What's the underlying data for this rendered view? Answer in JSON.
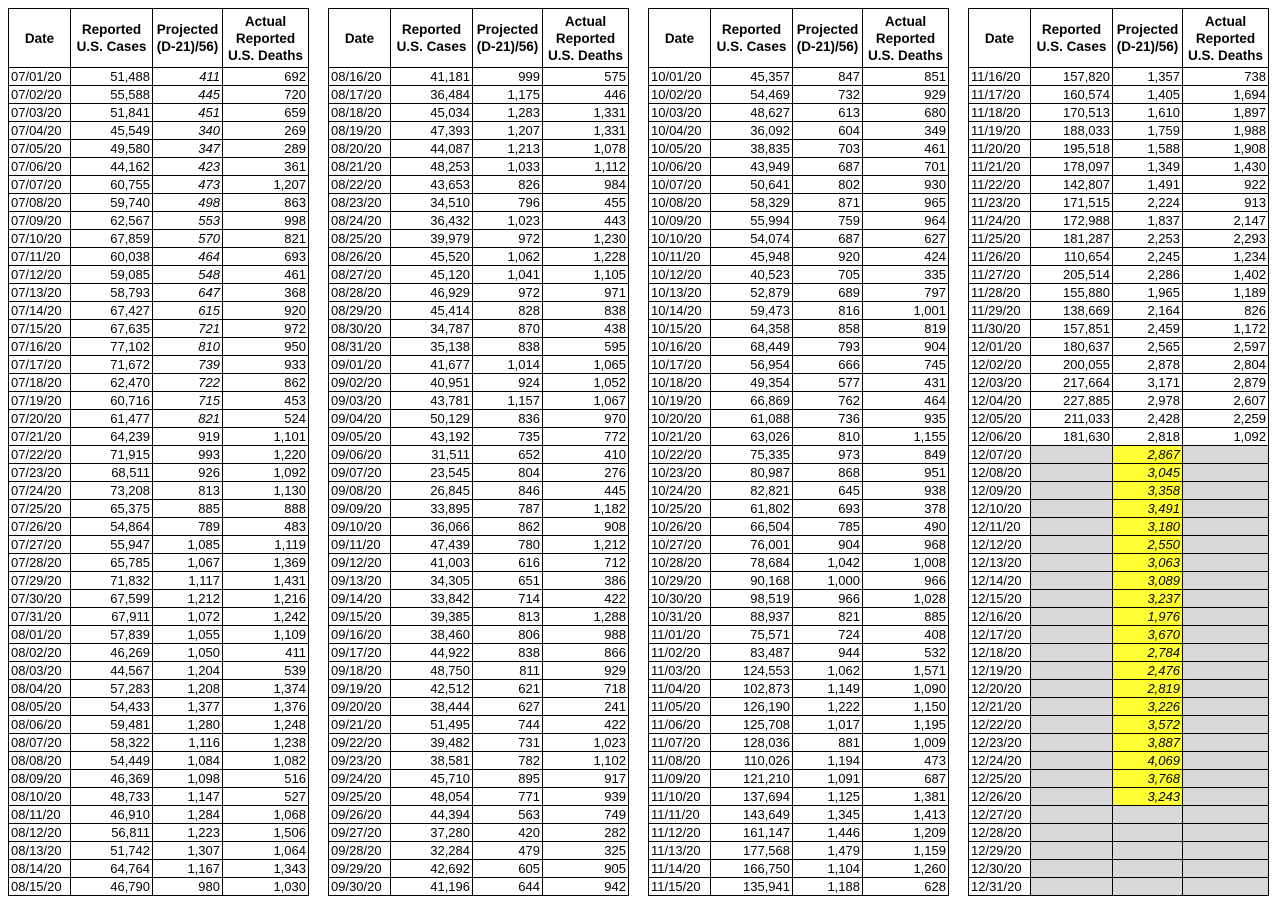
{
  "panels": [
    {
      "headers": [
        "Date",
        "Reported\nU.S. Cases",
        "Projected\n(D-21)/56)",
        "Actual\nReported\nU.S. Deaths"
      ],
      "rows": [
        [
          "07/01/20",
          "51,488",
          "411",
          "692"
        ],
        [
          "07/02/20",
          "55,588",
          "445",
          "720"
        ],
        [
          "07/03/20",
          "51,841",
          "451",
          "659"
        ],
        [
          "07/04/20",
          "45,549",
          "340",
          "269"
        ],
        [
          "07/05/20",
          "49,580",
          "347",
          "289"
        ],
        [
          "07/06/20",
          "44,162",
          "423",
          "361"
        ],
        [
          "07/07/20",
          "60,755",
          "473",
          "1,207"
        ],
        [
          "07/08/20",
          "59,740",
          "498",
          "863"
        ],
        [
          "07/09/20",
          "62,567",
          "553",
          "998"
        ],
        [
          "07/10/20",
          "67,859",
          "570",
          "821"
        ],
        [
          "07/11/20",
          "60,038",
          "464",
          "693"
        ],
        [
          "07/12/20",
          "59,085",
          "548",
          "461"
        ],
        [
          "07/13/20",
          "58,793",
          "647",
          "368"
        ],
        [
          "07/14/20",
          "67,427",
          "615",
          "920"
        ],
        [
          "07/15/20",
          "67,635",
          "721",
          "972"
        ],
        [
          "07/16/20",
          "77,102",
          "810",
          "950"
        ],
        [
          "07/17/20",
          "71,672",
          "739",
          "933"
        ],
        [
          "07/18/20",
          "62,470",
          "722",
          "862"
        ],
        [
          "07/19/20",
          "60,716",
          "715",
          "453"
        ],
        [
          "07/20/20",
          "61,477",
          "821",
          "524"
        ],
        [
          "07/21/20",
          "64,239",
          "919",
          "1,101"
        ],
        [
          "07/22/20",
          "71,915",
          "993",
          "1,220"
        ],
        [
          "07/23/20",
          "68,511",
          "926",
          "1,092"
        ],
        [
          "07/24/20",
          "73,208",
          "813",
          "1,130"
        ],
        [
          "07/25/20",
          "65,375",
          "885",
          "888"
        ],
        [
          "07/26/20",
          "54,864",
          "789",
          "483"
        ],
        [
          "07/27/20",
          "55,947",
          "1,085",
          "1,119"
        ],
        [
          "07/28/20",
          "65,785",
          "1,067",
          "1,369"
        ],
        [
          "07/29/20",
          "71,832",
          "1,117",
          "1,431"
        ],
        [
          "07/30/20",
          "67,599",
          "1,212",
          "1,216"
        ],
        [
          "07/31/20",
          "67,911",
          "1,072",
          "1,242"
        ],
        [
          "08/01/20",
          "57,839",
          "1,055",
          "1,109"
        ],
        [
          "08/02/20",
          "46,269",
          "1,050",
          "411"
        ],
        [
          "08/03/20",
          "44,567",
          "1,204",
          "539"
        ],
        [
          "08/04/20",
          "57,283",
          "1,208",
          "1,374"
        ],
        [
          "08/05/20",
          "54,433",
          "1,377",
          "1,376"
        ],
        [
          "08/06/20",
          "59,481",
          "1,280",
          "1,248"
        ],
        [
          "08/07/20",
          "58,322",
          "1,116",
          "1,238"
        ],
        [
          "08/08/20",
          "54,449",
          "1,084",
          "1,082"
        ],
        [
          "08/09/20",
          "46,369",
          "1,098",
          "516"
        ],
        [
          "08/10/20",
          "48,733",
          "1,147",
          "527"
        ],
        [
          "08/11/20",
          "46,910",
          "1,284",
          "1,068"
        ],
        [
          "08/12/20",
          "56,811",
          "1,223",
          "1,506"
        ],
        [
          "08/13/20",
          "51,742",
          "1,307",
          "1,064"
        ],
        [
          "08/14/20",
          "64,764",
          "1,167",
          "1,343"
        ],
        [
          "08/15/20",
          "46,790",
          "980",
          "1,030"
        ]
      ]
    },
    {
      "headers": [
        "Date",
        "Reported\nU.S. Cases",
        "Projected\n(D-21)/56)",
        "Actual\nReported\nU.S. Deaths"
      ],
      "rows": [
        [
          "08/16/20",
          "41,181",
          "999",
          "575"
        ],
        [
          "08/17/20",
          "36,484",
          "1,175",
          "446"
        ],
        [
          "08/18/20",
          "45,034",
          "1,283",
          "1,331"
        ],
        [
          "08/19/20",
          "47,393",
          "1,207",
          "1,331"
        ],
        [
          "08/20/20",
          "44,087",
          "1,213",
          "1,078"
        ],
        [
          "08/21/20",
          "48,253",
          "1,033",
          "1,112"
        ],
        [
          "08/22/20",
          "43,653",
          "826",
          "984"
        ],
        [
          "08/23/20",
          "34,510",
          "796",
          "455"
        ],
        [
          "08/24/20",
          "36,432",
          "1,023",
          "443"
        ],
        [
          "08/25/20",
          "39,979",
          "972",
          "1,230"
        ],
        [
          "08/26/20",
          "45,520",
          "1,062",
          "1,228"
        ],
        [
          "08/27/20",
          "45,120",
          "1,041",
          "1,105"
        ],
        [
          "08/28/20",
          "46,929",
          "972",
          "971"
        ],
        [
          "08/29/20",
          "45,414",
          "828",
          "838"
        ],
        [
          "08/30/20",
          "34,787",
          "870",
          "438"
        ],
        [
          "08/31/20",
          "35,138",
          "838",
          "595"
        ],
        [
          "09/01/20",
          "41,677",
          "1,014",
          "1,065"
        ],
        [
          "09/02/20",
          "40,951",
          "924",
          "1,052"
        ],
        [
          "09/03/20",
          "43,781",
          "1,157",
          "1,067"
        ],
        [
          "09/04/20",
          "50,129",
          "836",
          "970"
        ],
        [
          "09/05/20",
          "43,192",
          "735",
          "772"
        ],
        [
          "09/06/20",
          "31,511",
          "652",
          "410"
        ],
        [
          "09/07/20",
          "23,545",
          "804",
          "276"
        ],
        [
          "09/08/20",
          "26,845",
          "846",
          "445"
        ],
        [
          "09/09/20",
          "33,895",
          "787",
          "1,182"
        ],
        [
          "09/10/20",
          "36,066",
          "862",
          "908"
        ],
        [
          "09/11/20",
          "47,439",
          "780",
          "1,212"
        ],
        [
          "09/12/20",
          "41,003",
          "616",
          "712"
        ],
        [
          "09/13/20",
          "34,305",
          "651",
          "386"
        ],
        [
          "09/14/20",
          "33,842",
          "714",
          "422"
        ],
        [
          "09/15/20",
          "39,385",
          "813",
          "1,288"
        ],
        [
          "09/16/20",
          "38,460",
          "806",
          "988"
        ],
        [
          "09/17/20",
          "44,922",
          "838",
          "866"
        ],
        [
          "09/18/20",
          "48,750",
          "811",
          "929"
        ],
        [
          "09/19/20",
          "42,512",
          "621",
          "718"
        ],
        [
          "09/20/20",
          "38,444",
          "627",
          "241"
        ],
        [
          "09/21/20",
          "51,495",
          "744",
          "422"
        ],
        [
          "09/22/20",
          "39,482",
          "731",
          "1,023"
        ],
        [
          "09/23/20",
          "38,581",
          "782",
          "1,102"
        ],
        [
          "09/24/20",
          "45,710",
          "895",
          "917"
        ],
        [
          "09/25/20",
          "48,054",
          "771",
          "939"
        ],
        [
          "09/26/20",
          "44,394",
          "563",
          "749"
        ],
        [
          "09/27/20",
          "37,280",
          "420",
          "282"
        ],
        [
          "09/28/20",
          "32,284",
          "479",
          "325"
        ],
        [
          "09/29/20",
          "42,692",
          "605",
          "905"
        ],
        [
          "09/30/20",
          "41,196",
          "644",
          "942"
        ]
      ]
    },
    {
      "headers": [
        "Date",
        "Reported\nU.S. Cases",
        "Projected\n(D-21)/56)",
        "Actual\nReported\nU.S. Deaths"
      ],
      "rows": [
        [
          "10/01/20",
          "45,357",
          "847",
          "851"
        ],
        [
          "10/02/20",
          "54,469",
          "732",
          "929"
        ],
        [
          "10/03/20",
          "48,627",
          "613",
          "680"
        ],
        [
          "10/04/20",
          "36,092",
          "604",
          "349"
        ],
        [
          "10/05/20",
          "38,835",
          "703",
          "461"
        ],
        [
          "10/06/20",
          "43,949",
          "687",
          "701"
        ],
        [
          "10/07/20",
          "50,641",
          "802",
          "930"
        ],
        [
          "10/08/20",
          "58,329",
          "871",
          "965"
        ],
        [
          "10/09/20",
          "55,994",
          "759",
          "964"
        ],
        [
          "10/10/20",
          "54,074",
          "687",
          "627"
        ],
        [
          "10/11/20",
          "45,948",
          "920",
          "424"
        ],
        [
          "10/12/20",
          "40,523",
          "705",
          "335"
        ],
        [
          "10/13/20",
          "52,879",
          "689",
          "797"
        ],
        [
          "10/14/20",
          "59,473",
          "816",
          "1,001"
        ],
        [
          "10/15/20",
          "64,358",
          "858",
          "819"
        ],
        [
          "10/16/20",
          "68,449",
          "793",
          "904"
        ],
        [
          "10/17/20",
          "56,954",
          "666",
          "745"
        ],
        [
          "10/18/20",
          "49,354",
          "577",
          "431"
        ],
        [
          "10/19/20",
          "66,869",
          "762",
          "464"
        ],
        [
          "10/20/20",
          "61,088",
          "736",
          "935"
        ],
        [
          "10/21/20",
          "63,026",
          "810",
          "1,155"
        ],
        [
          "10/22/20",
          "75,335",
          "973",
          "849"
        ],
        [
          "10/23/20",
          "80,987",
          "868",
          "951"
        ],
        [
          "10/24/20",
          "82,821",
          "645",
          "938"
        ],
        [
          "10/25/20",
          "61,802",
          "693",
          "378"
        ],
        [
          "10/26/20",
          "66,504",
          "785",
          "490"
        ],
        [
          "10/27/20",
          "76,001",
          "904",
          "968"
        ],
        [
          "10/28/20",
          "78,684",
          "1,042",
          "1,008"
        ],
        [
          "10/29/20",
          "90,168",
          "1,000",
          "966"
        ],
        [
          "10/30/20",
          "98,519",
          "966",
          "1,028"
        ],
        [
          "10/31/20",
          "88,937",
          "821",
          "885"
        ],
        [
          "11/01/20",
          "75,571",
          "724",
          "408"
        ],
        [
          "11/02/20",
          "83,487",
          "944",
          "532"
        ],
        [
          "11/03/20",
          "124,553",
          "1,062",
          "1,571"
        ],
        [
          "11/04/20",
          "102,873",
          "1,149",
          "1,090"
        ],
        [
          "11/05/20",
          "126,190",
          "1,222",
          "1,150"
        ],
        [
          "11/06/20",
          "125,708",
          "1,017",
          "1,195"
        ],
        [
          "11/07/20",
          "128,036",
          "881",
          "1,009"
        ],
        [
          "11/08/20",
          "110,026",
          "1,194",
          "473"
        ],
        [
          "11/09/20",
          "121,210",
          "1,091",
          "687"
        ],
        [
          "11/10/20",
          "137,694",
          "1,125",
          "1,381"
        ],
        [
          "11/11/20",
          "143,649",
          "1,345",
          "1,413"
        ],
        [
          "11/12/20",
          "161,147",
          "1,446",
          "1,209"
        ],
        [
          "11/13/20",
          "177,568",
          "1,479",
          "1,159"
        ],
        [
          "11/14/20",
          "166,750",
          "1,104",
          "1,260"
        ],
        [
          "11/15/20",
          "135,941",
          "1,188",
          "628"
        ]
      ]
    },
    {
      "headers": [
        "Date",
        "Reported\nU.S. Cases",
        "Projected\n(D-21)/56)",
        "Actual\nReported\nU.S. Deaths"
      ],
      "rows": [
        [
          "11/16/20",
          "157,820",
          "1,357",
          "738"
        ],
        [
          "11/17/20",
          "160,574",
          "1,405",
          "1,694"
        ],
        [
          "11/18/20",
          "170,513",
          "1,610",
          "1,897"
        ],
        [
          "11/19/20",
          "188,033",
          "1,759",
          "1,988"
        ],
        [
          "11/20/20",
          "195,518",
          "1,588",
          "1,908"
        ],
        [
          "11/21/20",
          "178,097",
          "1,349",
          "1,430"
        ],
        [
          "11/22/20",
          "142,807",
          "1,491",
          "922"
        ],
        [
          "11/23/20",
          "171,515",
          "2,224",
          "913"
        ],
        [
          "11/24/20",
          "172,988",
          "1,837",
          "2,147"
        ],
        [
          "11/25/20",
          "181,287",
          "2,253",
          "2,293"
        ],
        [
          "11/26/20",
          "110,654",
          "2,245",
          "1,234"
        ],
        [
          "11/27/20",
          "205,514",
          "2,286",
          "1,402"
        ],
        [
          "11/28/20",
          "155,880",
          "1,965",
          "1,189"
        ],
        [
          "11/29/20",
          "138,669",
          "2,164",
          "826"
        ],
        [
          "11/30/20",
          "157,851",
          "2,459",
          "1,172"
        ],
        [
          "12/01/20",
          "180,637",
          "2,565",
          "2,597"
        ],
        [
          "12/02/20",
          "200,055",
          "2,878",
          "2,804"
        ],
        [
          "12/03/20",
          "217,664",
          "3,171",
          "2,879"
        ],
        [
          "12/04/20",
          "227,885",
          "2,978",
          "2,607"
        ],
        [
          "12/05/20",
          "211,033",
          "2,428",
          "2,259"
        ],
        [
          "12/06/20",
          "181,630",
          "2,818",
          "1,092"
        ],
        [
          "12/07/20",
          null,
          "2,867",
          null
        ],
        [
          "12/08/20",
          null,
          "3,045",
          null
        ],
        [
          "12/09/20",
          null,
          "3,358",
          null
        ],
        [
          "12/10/20",
          null,
          "3,491",
          null
        ],
        [
          "12/11/20",
          null,
          "3,180",
          null
        ],
        [
          "12/12/20",
          null,
          "2,550",
          null
        ],
        [
          "12/13/20",
          null,
          "3,063",
          null
        ],
        [
          "12/14/20",
          null,
          "3,089",
          null
        ],
        [
          "12/15/20",
          null,
          "3,237",
          null
        ],
        [
          "12/16/20",
          null,
          "1,976",
          null
        ],
        [
          "12/17/20",
          null,
          "3,670",
          null
        ],
        [
          "12/18/20",
          null,
          "2,784",
          null
        ],
        [
          "12/19/20",
          null,
          "2,476",
          null
        ],
        [
          "12/20/20",
          null,
          "2,819",
          null
        ],
        [
          "12/21/20",
          null,
          "3,226",
          null
        ],
        [
          "12/22/20",
          null,
          "3,572",
          null
        ],
        [
          "12/23/20",
          null,
          "3,887",
          null
        ],
        [
          "12/24/20",
          null,
          "4,069",
          null
        ],
        [
          "12/25/20",
          null,
          "3,768",
          null
        ],
        [
          "12/26/20",
          null,
          "3,243",
          null
        ],
        [
          "12/27/20",
          null,
          null,
          null
        ],
        [
          "12/28/20",
          null,
          null,
          null
        ],
        [
          "12/29/20",
          null,
          null,
          null
        ],
        [
          "12/30/20",
          null,
          null,
          null
        ],
        [
          "12/31/20",
          null,
          null,
          null
        ]
      ]
    }
  ]
}
